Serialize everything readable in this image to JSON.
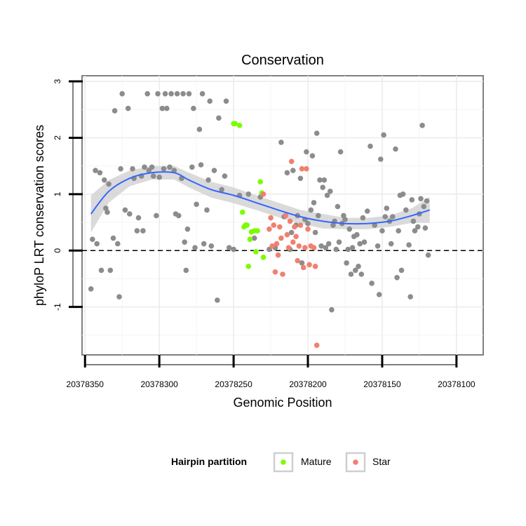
{
  "chart_data": {
    "type": "scatter",
    "title": "Conservation",
    "xlabel": "Genomic Position",
    "ylabel": "phyloP LRT conservation scores",
    "x_reversed": true,
    "xlim": [
      20378352,
      20378082
    ],
    "ylim": [
      -1.85,
      3.1
    ],
    "x_ticks": [
      20378350,
      20378300,
      20378250,
      20378200,
      20378150,
      20378100
    ],
    "x_tick_labels": [
      "20378350",
      "20378300",
      "20378250",
      "20378200",
      "20378150",
      "20378100"
    ],
    "y_ticks": [
      -1,
      0,
      1,
      2,
      3
    ],
    "y_tick_labels": [
      "-1",
      "0",
      "1",
      "2",
      "3"
    ],
    "grid": true,
    "reference_line": {
      "y": 0,
      "style": "dashed"
    },
    "legend": {
      "title": "Hairpin partition",
      "position": "bottom",
      "entries": [
        {
          "label": "Mature",
          "color": "#7cfc00"
        },
        {
          "label": "Star",
          "color": "#f08070"
        }
      ]
    },
    "colors": {
      "other": "#8c8c8c",
      "mature": "#7cfc00",
      "star": "#f08070",
      "smooth": "#3366ff",
      "band": "#d4d4d4"
    },
    "series": [
      {
        "group": "other",
        "color": "#8c8c8c",
        "points": [
          [
            20378346,
            -0.68
          ],
          [
            20378345,
            0.2
          ],
          [
            20378343,
            1.42
          ],
          [
            20378342,
            0.12
          ],
          [
            20378340,
            1.38
          ],
          [
            20378339,
            -0.35
          ],
          [
            20378337,
            1.25
          ],
          [
            20378336,
            0.75
          ],
          [
            20378335,
            0.68
          ],
          [
            20378334,
            1.18
          ],
          [
            20378333,
            -0.35
          ],
          [
            20378331,
            0.22
          ],
          [
            20378330,
            2.48
          ],
          [
            20378328,
            0.12
          ],
          [
            20378327,
            -0.82
          ],
          [
            20378326,
            1.45
          ],
          [
            20378325,
            2.78
          ],
          [
            20378323,
            0.72
          ],
          [
            20378321,
            2.52
          ],
          [
            20378320,
            0.65
          ],
          [
            20378318,
            1.45
          ],
          [
            20378317,
            1.28
          ],
          [
            20378315,
            0.35
          ],
          [
            20378314,
            0.58
          ],
          [
            20378312,
            1.32
          ],
          [
            20378311,
            0.35
          ],
          [
            20378310,
            1.48
          ],
          [
            20378308,
            2.78
          ],
          [
            20378307,
            1.42
          ],
          [
            20378305,
            1.48
          ],
          [
            20378304,
            1.32
          ],
          [
            20378302,
            0.62
          ],
          [
            20378301,
            2.78
          ],
          [
            20378300,
            1.3
          ],
          [
            20378298,
            2.52
          ],
          [
            20378297,
            1.45
          ],
          [
            20378296,
            2.78
          ],
          [
            20378295,
            2.52
          ],
          [
            20378293,
            1.48
          ],
          [
            20378292,
            2.78
          ],
          [
            20378290,
            1.42
          ],
          [
            20378289,
            0.65
          ],
          [
            20378288,
            2.78
          ],
          [
            20378287,
            0.62
          ],
          [
            20378285,
            1.28
          ],
          [
            20378284,
            2.78
          ],
          [
            20378283,
            0.15
          ],
          [
            20378282,
            -0.35
          ],
          [
            20378281,
            0.38
          ],
          [
            20378280,
            2.78
          ],
          [
            20378278,
            1.48
          ],
          [
            20378277,
            2.52
          ],
          [
            20378276,
            0.05
          ],
          [
            20378275,
            0.82
          ],
          [
            20378273,
            2.15
          ],
          [
            20378272,
            1.52
          ],
          [
            20378271,
            2.78
          ],
          [
            20378270,
            0.12
          ],
          [
            20378268,
            0.72
          ],
          [
            20378267,
            1.25
          ],
          [
            20378266,
            2.65
          ],
          [
            20378265,
            0.08
          ],
          [
            20378263,
            1.42
          ],
          [
            20378261,
            -0.88
          ],
          [
            20378260,
            2.35
          ],
          [
            20378258,
            1.08
          ],
          [
            20378256,
            1.32
          ],
          [
            20378255,
            2.65
          ],
          [
            20378253,
            0.05
          ],
          [
            20378250,
            0.02
          ],
          [
            20378246,
            0.98
          ],
          [
            20378240,
            1.0
          ],
          [
            20378236,
            0.22
          ],
          [
            20378232,
            0.95
          ],
          [
            20378226,
            0.02
          ],
          [
            20378222,
            0.05
          ],
          [
            20378218,
            1.92
          ],
          [
            20378216,
            0.6
          ],
          [
            20378214,
            1.38
          ],
          [
            20378212,
            0.02
          ],
          [
            20378211,
            0.32
          ],
          [
            20378210,
            1.42
          ],
          [
            20378208,
            0.45
          ],
          [
            20378207,
            0.62
          ],
          [
            20378205,
            1.28
          ],
          [
            20378204,
            -0.22
          ],
          [
            20378202,
            0.55
          ],
          [
            20378201,
            1.75
          ],
          [
            20378200,
            0.48
          ],
          [
            20378198,
            0.72
          ],
          [
            20378197,
            1.68
          ],
          [
            20378196,
            0.85
          ],
          [
            20378195,
            0.32
          ],
          [
            20378194,
            2.08
          ],
          [
            20378193,
            0.62
          ],
          [
            20378192,
            1.25
          ],
          [
            20378191,
            0.08
          ],
          [
            20378190,
            1.12
          ],
          [
            20378189,
            1.25
          ],
          [
            20378188,
            0.05
          ],
          [
            20378187,
            0.98
          ],
          [
            20378186,
            0.12
          ],
          [
            20378185,
            1.05
          ],
          [
            20378184,
            -1.05
          ],
          [
            20378183,
            0.45
          ],
          [
            20378182,
            0.52
          ],
          [
            20378181,
            0.02
          ],
          [
            20378180,
            0.78
          ],
          [
            20378179,
            0.15
          ],
          [
            20378178,
            1.75
          ],
          [
            20378177,
            0.48
          ],
          [
            20378176,
            0.62
          ],
          [
            20378175,
            0.55
          ],
          [
            20378174,
            -0.22
          ],
          [
            20378173,
            0.02
          ],
          [
            20378172,
            0.38
          ],
          [
            20378171,
            -0.42
          ],
          [
            20378170,
            0.05
          ],
          [
            20378169,
            0.25
          ],
          [
            20378168,
            -0.35
          ],
          [
            20378167,
            0.28
          ],
          [
            20378166,
            -0.28
          ],
          [
            20378165,
            0.12
          ],
          [
            20378164,
            -0.42
          ],
          [
            20378163,
            0.58
          ],
          [
            20378162,
            0.15
          ],
          [
            20378160,
            0.7
          ],
          [
            20378158,
            1.85
          ],
          [
            20378157,
            -0.58
          ],
          [
            20378155,
            0.45
          ],
          [
            20378153,
            0.08
          ],
          [
            20378152,
            -0.78
          ],
          [
            20378151,
            1.62
          ],
          [
            20378150,
            0.35
          ],
          [
            20378149,
            2.05
          ],
          [
            20378148,
            0.6
          ],
          [
            20378147,
            0.75
          ],
          [
            20378145,
            0.52
          ],
          [
            20378144,
            0.12
          ],
          [
            20378143,
            0.6
          ],
          [
            20378141,
            1.8
          ],
          [
            20378140,
            -0.48
          ],
          [
            20378139,
            0.35
          ],
          [
            20378138,
            0.98
          ],
          [
            20378137,
            -0.35
          ],
          [
            20378136,
            1.0
          ],
          [
            20378134,
            0.72
          ],
          [
            20378132,
            0.1
          ],
          [
            20378131,
            -0.82
          ],
          [
            20378130,
            0.9
          ],
          [
            20378129,
            0.52
          ],
          [
            20378128,
            0.35
          ],
          [
            20378126,
            0.42
          ],
          [
            20378125,
            0.65
          ],
          [
            20378124,
            0.92
          ],
          [
            20378123,
            2.22
          ],
          [
            20378122,
            0.78
          ],
          [
            20378121,
            0.4
          ],
          [
            20378120,
            0.88
          ],
          [
            20378119,
            -0.08
          ]
        ]
      },
      {
        "group": "mature",
        "color": "#7cfc00",
        "points": [
          [
            20378250,
            2.25
          ],
          [
            20378249,
            2.25
          ],
          [
            20378246,
            2.22
          ],
          [
            20378244,
            0.68
          ],
          [
            20378243,
            0.42
          ],
          [
            20378242,
            0.45
          ],
          [
            20378241,
            0.45
          ],
          [
            20378240,
            -0.28
          ],
          [
            20378239,
            0.2
          ],
          [
            20378238,
            0.33
          ],
          [
            20378236,
            0.35
          ],
          [
            20378235,
            -0.02
          ],
          [
            20378234,
            0.35
          ],
          [
            20378232,
            1.22
          ],
          [
            20378231,
            1.02
          ],
          [
            20378230,
            -0.12
          ]
        ]
      },
      {
        "group": "star",
        "color": "#f08070",
        "points": [
          [
            20378230,
            1.0
          ],
          [
            20378226,
            0.38
          ],
          [
            20378225,
            0.58
          ],
          [
            20378224,
            0.08
          ],
          [
            20378223,
            0.45
          ],
          [
            20378222,
            -0.38
          ],
          [
            20378221,
            0.12
          ],
          [
            20378220,
            -0.08
          ],
          [
            20378219,
            0.42
          ],
          [
            20378218,
            0.22
          ],
          [
            20378217,
            -0.42
          ],
          [
            20378215,
            0.62
          ],
          [
            20378214,
            0.28
          ],
          [
            20378213,
            0.05
          ],
          [
            20378212,
            0.52
          ],
          [
            20378211,
            1.58
          ],
          [
            20378210,
            0.15
          ],
          [
            20378209,
            0.42
          ],
          [
            20378208,
            0.25
          ],
          [
            20378207,
            -0.18
          ],
          [
            20378206,
            0.08
          ],
          [
            20378205,
            0.45
          ],
          [
            20378204,
            1.45
          ],
          [
            20378203,
            -0.3
          ],
          [
            20378202,
            0.05
          ],
          [
            20378201,
            1.45
          ],
          [
            20378200,
            0.38
          ],
          [
            20378199,
            -0.25
          ],
          [
            20378198,
            0.08
          ],
          [
            20378196,
            0.05
          ],
          [
            20378195,
            -0.28
          ],
          [
            20378194,
            -1.68
          ]
        ]
      }
    ],
    "smooth": {
      "x": [
        20378346,
        20378334,
        20378320,
        20378305,
        20378290,
        20378280,
        20378265,
        20378250,
        20378235,
        20378220,
        20378205,
        20378190,
        20378175,
        20378160,
        20378145,
        20378130,
        20378118
      ],
      "y": [
        0.65,
        1.05,
        1.28,
        1.38,
        1.38,
        1.25,
        1.08,
        0.98,
        0.85,
        0.72,
        0.6,
        0.52,
        0.48,
        0.48,
        0.52,
        0.62,
        0.72
      ],
      "upper": [
        0.98,
        1.25,
        1.42,
        1.5,
        1.5,
        1.38,
        1.22,
        1.12,
        0.98,
        0.85,
        0.72,
        0.65,
        0.58,
        0.58,
        0.62,
        0.75,
        0.95
      ],
      "lower": [
        0.32,
        0.85,
        1.14,
        1.26,
        1.26,
        1.12,
        0.94,
        0.84,
        0.72,
        0.59,
        0.48,
        0.39,
        0.38,
        0.38,
        0.42,
        0.49,
        0.49
      ]
    }
  }
}
